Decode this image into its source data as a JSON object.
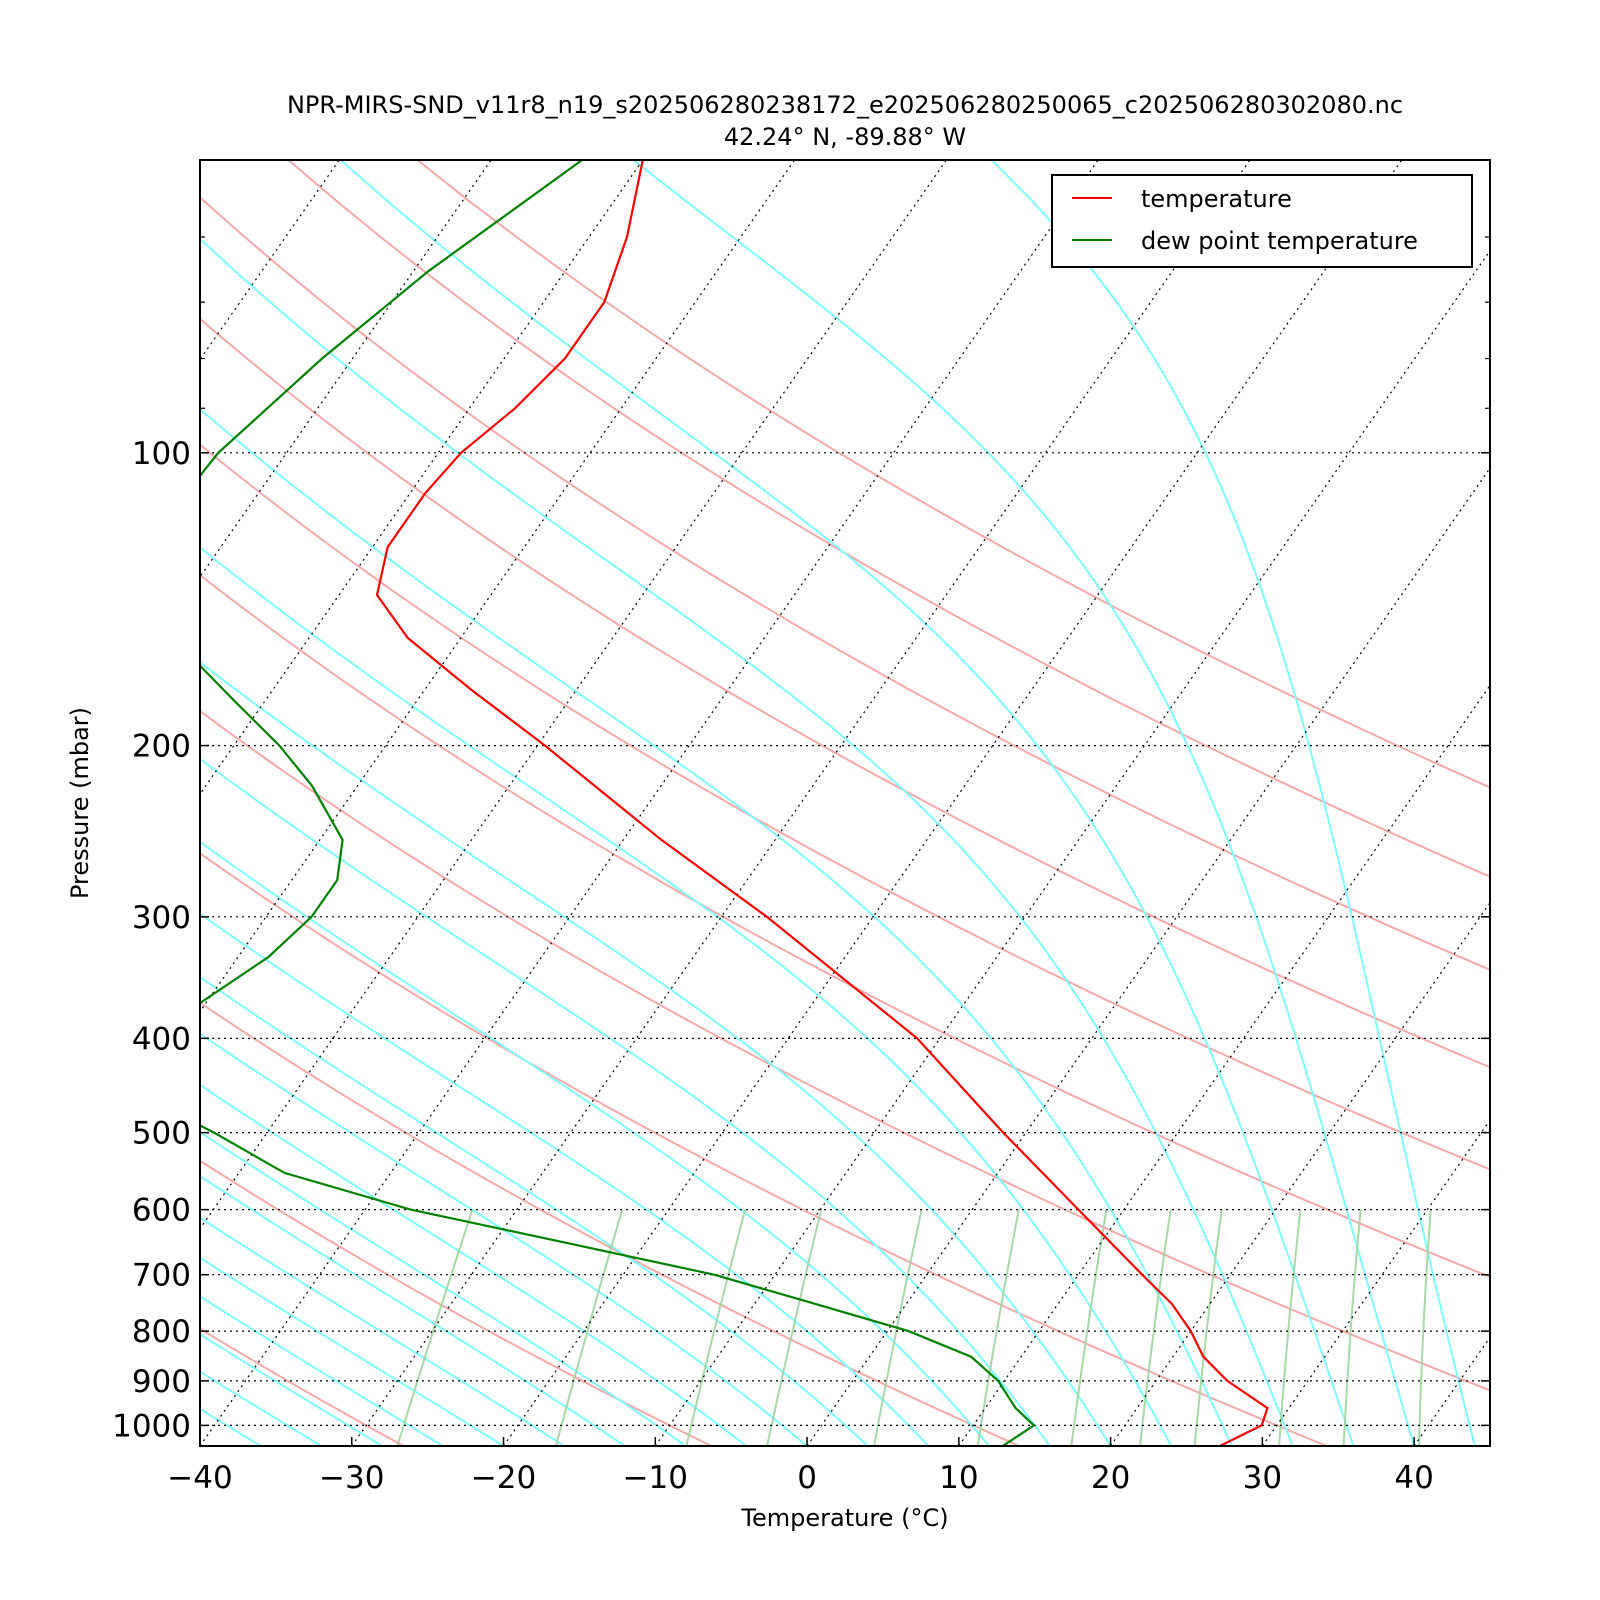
{
  "chart_data": {
    "type": "line",
    "title": "NPR-MIRS-SND_v11r8_n19_s202506280238172_e202506280250065_c202506280302080.nc",
    "subtitle": "42.24° N, -89.88° W",
    "xlabel": "Temperature (°C)",
    "ylabel": "Pressure (mbar)",
    "xlim": [
      -40,
      45
    ],
    "ylim": [
      1050,
      50
    ],
    "y_scale": "log",
    "skew": true,
    "grid": true,
    "legend_position": "top-right",
    "x_ticks": [
      -40,
      -30,
      -20,
      -10,
      0,
      10,
      20,
      30,
      40
    ],
    "x_tick_labels": [
      "−40",
      "−30",
      "−20",
      "−10",
      "0",
      "10",
      "20",
      "30",
      "40"
    ],
    "y_ticks": [
      100,
      200,
      300,
      400,
      500,
      600,
      700,
      800,
      900,
      1000
    ],
    "y_tick_labels": [
      "100",
      "200",
      "300",
      "400",
      "500",
      "600",
      "700",
      "800",
      "900",
      "1000"
    ],
    "series": [
      {
        "name": "temperature",
        "color": "#ff0000",
        "points": [
          [
            1050,
            27.2
          ],
          [
            1000,
            29.0
          ],
          [
            960,
            28.6
          ],
          [
            900,
            24.7
          ],
          [
            850,
            22.0
          ],
          [
            800,
            20.0
          ],
          [
            750,
            17.5
          ],
          [
            700,
            14.2
          ],
          [
            600,
            7.0
          ],
          [
            500,
            -1.5
          ],
          [
            400,
            -11.5
          ],
          [
            300,
            -27.0
          ],
          [
            250,
            -37.5
          ],
          [
            200,
            -49.5
          ],
          [
            175,
            -57.0
          ],
          [
            155,
            -63.5
          ],
          [
            140,
            -67.5
          ],
          [
            125,
            -69.0
          ],
          [
            110,
            -69.0
          ],
          [
            100,
            -68.5
          ],
          [
            90,
            -67.0
          ],
          [
            80,
            -66.0
          ],
          [
            70,
            -66.0
          ],
          [
            60,
            -67.5
          ],
          [
            50,
            -70.0
          ]
        ]
      },
      {
        "name": "dew point temperature",
        "color": "#008000",
        "points": [
          [
            1050,
            12.9
          ],
          [
            1000,
            14.0
          ],
          [
            960,
            12.0
          ],
          [
            900,
            9.6
          ],
          [
            850,
            6.7
          ],
          [
            800,
            1.4
          ],
          [
            750,
            -6.0
          ],
          [
            700,
            -14.0
          ],
          [
            650,
            -25.0
          ],
          [
            600,
            -37.0
          ],
          [
            550,
            -47.0
          ],
          [
            500,
            -53.5
          ],
          [
            480,
            -56.5
          ],
          [
            440,
            -61.0
          ],
          [
            400,
            -60.5
          ],
          [
            370,
            -60.5
          ],
          [
            330,
            -58.0
          ],
          [
            300,
            -57.0
          ],
          [
            275,
            -57.0
          ],
          [
            250,
            -58.5
          ],
          [
            220,
            -63.0
          ],
          [
            200,
            -67.0
          ],
          [
            180,
            -72.0
          ],
          [
            160,
            -77.5
          ],
          [
            140,
            -82.5
          ],
          [
            120,
            -85.0
          ],
          [
            100,
            -84.5
          ],
          [
            80,
            -82.0
          ],
          [
            65,
            -79.0
          ],
          [
            50,
            -74.0
          ]
        ]
      }
    ]
  }
}
